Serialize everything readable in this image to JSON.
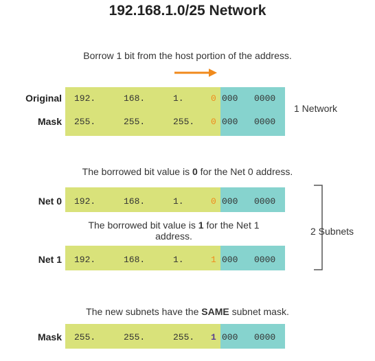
{
  "title": "192.168.1.0/25 Network",
  "colors": {
    "network_bg": "#d9e27a",
    "host_bg": "#86d3ce",
    "bit_zero": "#f08a1c",
    "bit_one_net1": "#f08a1c",
    "bit_one_mask": "#5a3f8f",
    "arrow": "#f08a1c",
    "bracket": "#555555"
  },
  "section1": {
    "note": "Borrow 1 bit from the host portion of the address.",
    "original": {
      "label": "Original",
      "octets": [
        "192.",
        "168.",
        "1."
      ],
      "bit": "0",
      "host": [
        "000",
        "0000"
      ]
    },
    "mask": {
      "label": "Mask",
      "octets": [
        "255.",
        "255.",
        "255."
      ],
      "bit": "0",
      "host": [
        "000",
        "0000"
      ]
    },
    "side_label": "1 Network",
    "arrow_icon": "right-arrow"
  },
  "section2": {
    "note_pre": "The borrowed bit value is ",
    "note_bold": "0",
    "note_post": " for the Net 0 address.",
    "net0": {
      "label": "Net 0",
      "octets": [
        "192.",
        "168.",
        "1."
      ],
      "bit": "0",
      "host": [
        "000",
        "0000"
      ]
    },
    "note2_pre": "The borrowed bit value is ",
    "note2_bold": "1",
    "note2_post": " for the Net 1 address.",
    "net1": {
      "label": "Net 1",
      "octets": [
        "192.",
        "168.",
        "1."
      ],
      "bit": "1",
      "host": [
        "000",
        "0000"
      ]
    },
    "side_label": "2 Subnets"
  },
  "section3": {
    "note_pre": "The new subnets have the ",
    "note_bold": "SAME",
    "note_post": " subnet mask.",
    "mask": {
      "label": "Mask",
      "octets": [
        "255.",
        "255.",
        "255."
      ],
      "bit": "1",
      "host": [
        "000",
        "0000"
      ]
    }
  }
}
